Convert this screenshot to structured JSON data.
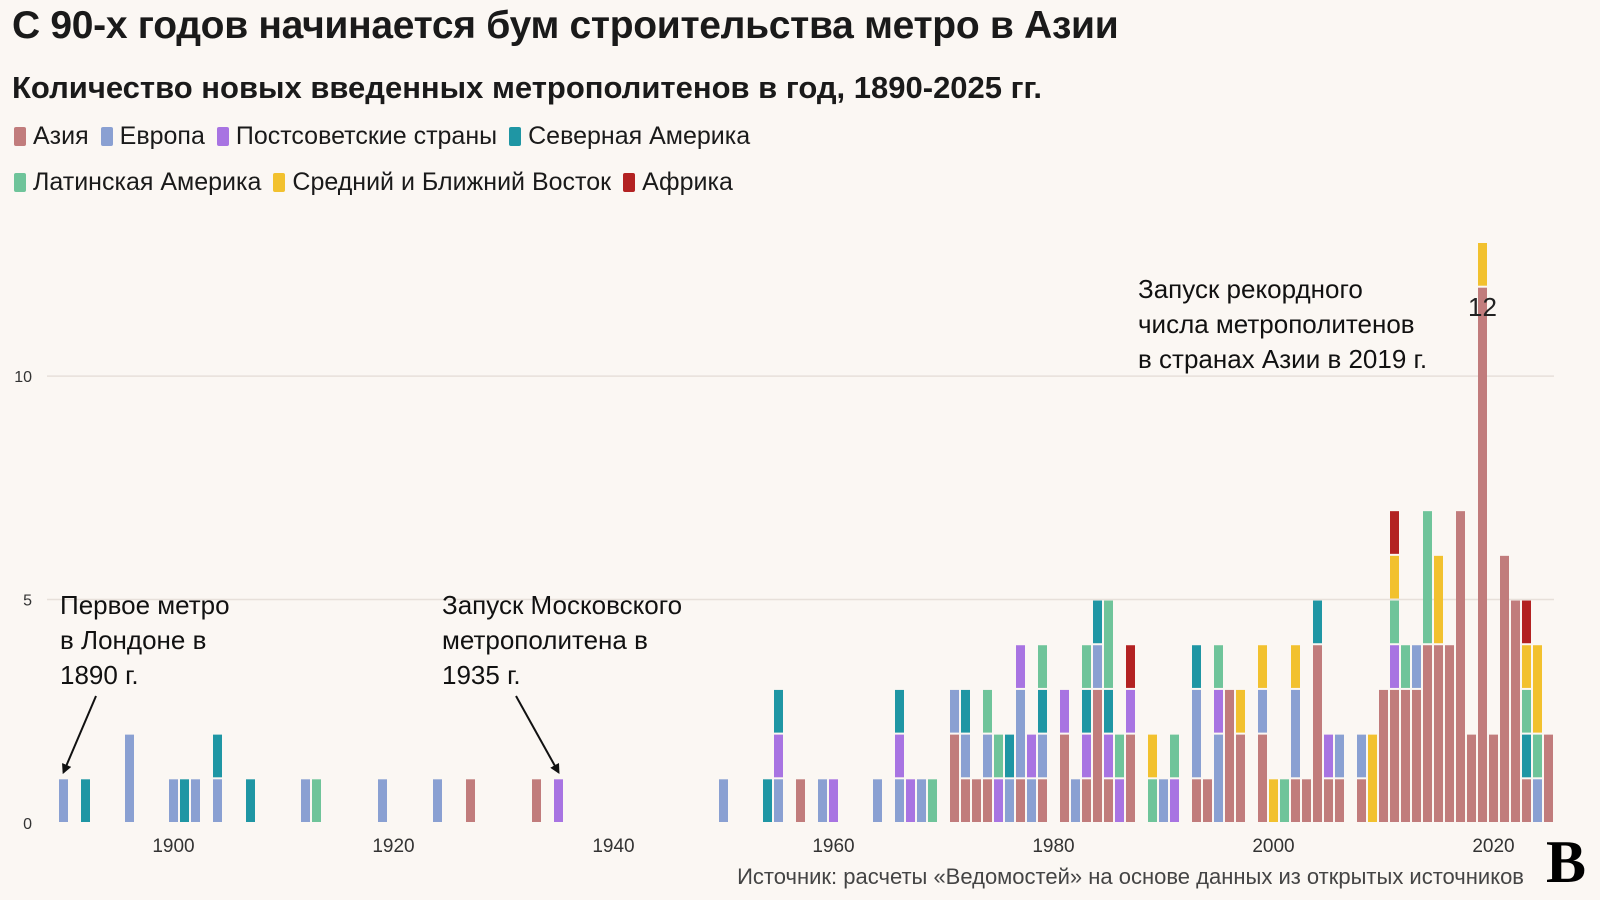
{
  "chart_data": {
    "type": "bar",
    "stacked": true,
    "title": "С 90-х годов начинается бум строительства метро в Азии",
    "subtitle": "Количество новых введенных метрополитенов в год, 1890-2025 гг.",
    "xlabel": "",
    "ylabel": "",
    "xlim": [
      1889,
      2025
    ],
    "ylim": [
      0,
      13
    ],
    "x_ticks": [
      1900,
      1920,
      1940,
      1960,
      1980,
      2000,
      2020
    ],
    "y_ticks": [
      0,
      5,
      10
    ],
    "legend_position": "top",
    "series": [
      {
        "key": "asia",
        "name": "Азия",
        "color": "#c17c7c"
      },
      {
        "key": "europe",
        "name": "Европа",
        "color": "#8aa0d2"
      },
      {
        "key": "postsoviet",
        "name": "Постсоветские страны",
        "color": "#a874e2"
      },
      {
        "key": "namerica",
        "name": "Северная Америка",
        "color": "#1f96a4"
      },
      {
        "key": "latam",
        "name": "Латинская Америка",
        "color": "#6fc49a"
      },
      {
        "key": "mideast",
        "name": "Средний и Ближний Восток",
        "color": "#f2c12e"
      },
      {
        "key": "africa",
        "name": "Африка",
        "color": "#b32222"
      }
    ],
    "data": [
      {
        "year": 1890,
        "europe": 1
      },
      {
        "year": 1892,
        "namerica": 1
      },
      {
        "year": 1896,
        "europe": 2
      },
      {
        "year": 1900,
        "europe": 1
      },
      {
        "year": 1901,
        "namerica": 1
      },
      {
        "year": 1902,
        "europe": 1
      },
      {
        "year": 1904,
        "europe": 1,
        "namerica": 1
      },
      {
        "year": 1907,
        "namerica": 1
      },
      {
        "year": 1912,
        "europe": 1
      },
      {
        "year": 1913,
        "latam": 1
      },
      {
        "year": 1919,
        "europe": 1
      },
      {
        "year": 1924,
        "europe": 1
      },
      {
        "year": 1927,
        "asia": 1
      },
      {
        "year": 1933,
        "asia": 1
      },
      {
        "year": 1935,
        "postsoviet": 1
      },
      {
        "year": 1950,
        "europe": 1
      },
      {
        "year": 1954,
        "namerica": 1
      },
      {
        "year": 1955,
        "europe": 1,
        "postsoviet": 1,
        "namerica": 1
      },
      {
        "year": 1957,
        "asia": 1
      },
      {
        "year": 1959,
        "europe": 1
      },
      {
        "year": 1960,
        "postsoviet": 1
      },
      {
        "year": 1964,
        "europe": 1
      },
      {
        "year": 1966,
        "europe": 1,
        "postsoviet": 1,
        "namerica": 1
      },
      {
        "year": 1967,
        "postsoviet": 1
      },
      {
        "year": 1968,
        "europe": 1
      },
      {
        "year": 1969,
        "latam": 1
      },
      {
        "year": 1971,
        "asia": 2,
        "europe": 1
      },
      {
        "year": 1972,
        "asia": 1,
        "europe": 1,
        "namerica": 1
      },
      {
        "year": 1973,
        "asia": 1
      },
      {
        "year": 1974,
        "asia": 1,
        "europe": 1,
        "latam": 1
      },
      {
        "year": 1975,
        "latam": 1,
        "postsoviet": 1
      },
      {
        "year": 1976,
        "europe": 1,
        "namerica": 1
      },
      {
        "year": 1977,
        "asia": 1,
        "europe": 2,
        "postsoviet": 1
      },
      {
        "year": 1978,
        "europe": 1,
        "postsoviet": 1
      },
      {
        "year": 1979,
        "asia": 1,
        "europe": 1,
        "latam": 1,
        "namerica": 1
      },
      {
        "year": 1981,
        "asia": 2,
        "postsoviet": 1
      },
      {
        "year": 1982,
        "europe": 1
      },
      {
        "year": 1983,
        "asia": 1,
        "postsoviet": 1,
        "latam": 1,
        "namerica": 1
      },
      {
        "year": 1984,
        "asia": 3,
        "europe": 1,
        "namerica": 1
      },
      {
        "year": 1985,
        "asia": 1,
        "latam": 2,
        "postsoviet": 1,
        "namerica": 1
      },
      {
        "year": 1986,
        "latam": 1,
        "postsoviet": 1
      },
      {
        "year": 1987,
        "asia": 2,
        "africa": 1,
        "postsoviet": 1
      },
      {
        "year": 1989,
        "mideast": 1,
        "latam": 1
      },
      {
        "year": 1990,
        "europe": 1
      },
      {
        "year": 1991,
        "latam": 1,
        "postsoviet": 1
      },
      {
        "year": 1993,
        "asia": 1,
        "europe": 2,
        "namerica": 1
      },
      {
        "year": 1994,
        "asia": 1
      },
      {
        "year": 1995,
        "europe": 2,
        "latam": 1,
        "postsoviet": 1
      },
      {
        "year": 1996,
        "asia": 3
      },
      {
        "year": 1997,
        "asia": 2,
        "mideast": 1
      },
      {
        "year": 1999,
        "asia": 2,
        "mideast": 1,
        "europe": 1
      },
      {
        "year": 2000,
        "mideast": 1
      },
      {
        "year": 2001,
        "latam": 1
      },
      {
        "year": 2002,
        "asia": 1,
        "mideast": 1,
        "europe": 2
      },
      {
        "year": 2003,
        "asia": 1
      },
      {
        "year": 2004,
        "asia": 4,
        "namerica": 1
      },
      {
        "year": 2005,
        "asia": 1,
        "postsoviet": 1
      },
      {
        "year": 2006,
        "asia": 1,
        "europe": 1
      },
      {
        "year": 2008,
        "asia": 1,
        "europe": 1
      },
      {
        "year": 2009,
        "mideast": 2
      },
      {
        "year": 2010,
        "asia": 3
      },
      {
        "year": 2011,
        "asia": 3,
        "africa": 1,
        "mideast": 1,
        "latam": 1,
        "postsoviet": 1
      },
      {
        "year": 2012,
        "asia": 3,
        "latam": 1
      },
      {
        "year": 2013,
        "asia": 3,
        "europe": 1
      },
      {
        "year": 2014,
        "asia": 4,
        "latam": 3
      },
      {
        "year": 2015,
        "asia": 4,
        "mideast": 2
      },
      {
        "year": 2016,
        "asia": 4
      },
      {
        "year": 2017,
        "asia": 7
      },
      {
        "year": 2018,
        "asia": 2
      },
      {
        "year": 2019,
        "asia": 12,
        "mideast": 1
      },
      {
        "year": 2020,
        "asia": 2
      },
      {
        "year": 2021,
        "asia": 6
      },
      {
        "year": 2022,
        "asia": 5
      },
      {
        "year": 2023,
        "asia": 1,
        "africa": 1,
        "mideast": 1,
        "latam": 1,
        "namerica": 1
      },
      {
        "year": 2024,
        "mideast": 2,
        "latam": 1,
        "europe": 1
      },
      {
        "year": 2025,
        "asia": 2
      }
    ],
    "annotations": [
      {
        "lines": [
          "Первое метро",
          "в Лондоне в",
          "1890 г."
        ],
        "year": 1890,
        "value": 1
      },
      {
        "lines": [
          "Запуск Московского",
          "метрополитена в",
          "1935 г."
        ],
        "year": 1935,
        "value": 1
      },
      {
        "lines": [
          "Запуск рекордного",
          "числа метрополитенов",
          "в странах Азии в 2019 г."
        ],
        "year": 2019,
        "value": 12
      }
    ],
    "data_labels": [
      {
        "year": 2019,
        "text": "12"
      }
    ]
  },
  "source": "Источник: расчеты «Ведомостей» на основе данных из открытых источников",
  "logo": "В"
}
